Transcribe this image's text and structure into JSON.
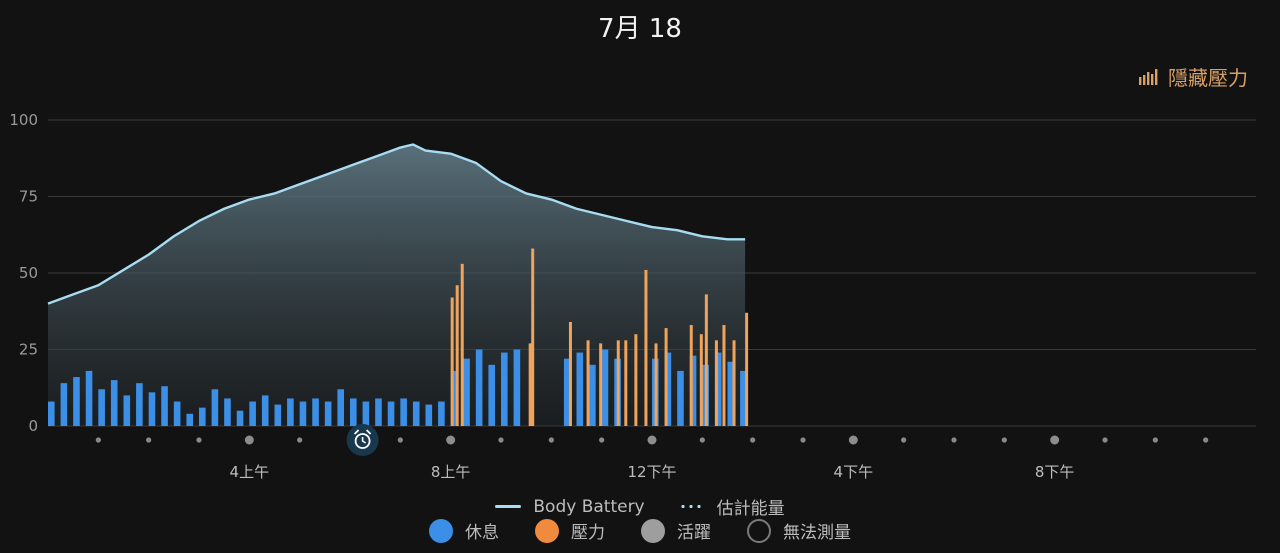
{
  "header": {
    "title": "7月 18",
    "hide_stress_label": "隱藏壓力",
    "hide_stress_color": "#d9a066"
  },
  "legend": {
    "line_items": [
      {
        "label": "Body Battery",
        "color": "#a7dcf2",
        "style": "solid"
      },
      {
        "label": "估計能量",
        "color": "#a7dcf2",
        "style": "dotted"
      }
    ],
    "level_items": [
      {
        "label": "休息",
        "color": "#3b8fe6",
        "style": "filled"
      },
      {
        "label": "壓力",
        "color": "#f08a3c",
        "style": "filled"
      },
      {
        "label": "活躍",
        "color": "#9e9e9e",
        "style": "filled"
      },
      {
        "label": "無法測量",
        "color": "#7a7a7a",
        "style": "outline"
      }
    ]
  },
  "chart_data": {
    "type": "bar",
    "date": "7月 18",
    "x_unit": "hours since 12上午",
    "xlim": [
      0,
      24
    ],
    "ylim": [
      0,
      100
    ],
    "yticks": [
      0,
      25,
      50,
      75,
      100
    ],
    "xtick_labels": [
      {
        "hour": 4,
        "label": "4上午"
      },
      {
        "hour": 8,
        "label": "8上午"
      },
      {
        "hour": 12,
        "label": "12下午"
      },
      {
        "hour": 16,
        "label": "4下午"
      },
      {
        "hour": 20,
        "label": "8下午"
      }
    ],
    "wake_hour": 6.25,
    "grid": true,
    "legend_position": "bottom",
    "body_battery": {
      "name": "Body Battery",
      "color": "#a7dcf2",
      "points": [
        [
          0,
          40
        ],
        [
          0.5,
          43
        ],
        [
          1,
          46
        ],
        [
          1.5,
          51
        ],
        [
          2,
          56
        ],
        [
          2.5,
          62
        ],
        [
          3,
          67
        ],
        [
          3.5,
          71
        ],
        [
          4,
          74
        ],
        [
          4.5,
          76
        ],
        [
          5,
          79
        ],
        [
          5.5,
          82
        ],
        [
          6,
          85
        ],
        [
          6.5,
          88
        ],
        [
          7,
          91
        ],
        [
          7.25,
          92
        ],
        [
          7.5,
          90
        ],
        [
          8,
          89
        ],
        [
          8.5,
          86
        ],
        [
          9,
          80
        ],
        [
          9.5,
          76
        ],
        [
          10,
          74
        ],
        [
          10.5,
          71
        ],
        [
          11,
          69
        ],
        [
          11.5,
          67
        ],
        [
          12,
          65
        ],
        [
          12.5,
          64
        ],
        [
          13,
          62
        ],
        [
          13.5,
          61
        ],
        [
          13.85,
          61
        ]
      ]
    },
    "stress_series": [
      {
        "name": "休息",
        "color": "#3b8fe6",
        "bars": [
          [
            0,
            8
          ],
          [
            0.25,
            14
          ],
          [
            0.5,
            16
          ],
          [
            0.75,
            18
          ],
          [
            1,
            12
          ],
          [
            1.25,
            15
          ],
          [
            1.5,
            10
          ],
          [
            1.75,
            14
          ],
          [
            2,
            11
          ],
          [
            2.25,
            13
          ],
          [
            2.5,
            8
          ],
          [
            2.75,
            4
          ],
          [
            3,
            6
          ],
          [
            3.25,
            12
          ],
          [
            3.5,
            9
          ],
          [
            3.75,
            5
          ],
          [
            4,
            8
          ],
          [
            4.25,
            10
          ],
          [
            4.5,
            7
          ],
          [
            4.75,
            9
          ],
          [
            5,
            8
          ],
          [
            5.25,
            9
          ],
          [
            5.5,
            8
          ],
          [
            5.75,
            12
          ],
          [
            6,
            9
          ],
          [
            6.25,
            8
          ],
          [
            6.5,
            9
          ],
          [
            6.75,
            8
          ],
          [
            7,
            9
          ],
          [
            7.25,
            8
          ],
          [
            7.5,
            7
          ],
          [
            7.75,
            8
          ],
          [
            8,
            18
          ],
          [
            8.25,
            22
          ],
          [
            8.5,
            25
          ],
          [
            8.75,
            20
          ],
          [
            9,
            24
          ],
          [
            9.25,
            25
          ],
          [
            10.25,
            22
          ],
          [
            10.5,
            24
          ],
          [
            10.75,
            20
          ],
          [
            11,
            25
          ],
          [
            11.25,
            22
          ],
          [
            12,
            22
          ],
          [
            12.25,
            24
          ],
          [
            12.5,
            18
          ],
          [
            12.75,
            23
          ],
          [
            13,
            20
          ],
          [
            13.25,
            24
          ],
          [
            13.5,
            21
          ],
          [
            13.75,
            18
          ]
        ]
      },
      {
        "name": "壓力",
        "color": "#f0a35a",
        "bars": [
          [
            8,
            42
          ],
          [
            8.1,
            46
          ],
          [
            8.2,
            53
          ],
          [
            9.55,
            27
          ],
          [
            9.6,
            58
          ],
          [
            10.35,
            34
          ],
          [
            10.7,
            28
          ],
          [
            10.95,
            27
          ],
          [
            11.3,
            28
          ],
          [
            11.45,
            28
          ],
          [
            11.65,
            30
          ],
          [
            11.85,
            51
          ],
          [
            12.05,
            27
          ],
          [
            12.25,
            32
          ],
          [
            12.75,
            33
          ],
          [
            12.95,
            30
          ],
          [
            13.05,
            43
          ],
          [
            13.25,
            28
          ],
          [
            13.4,
            33
          ],
          [
            13.6,
            28
          ],
          [
            13.85,
            37
          ]
        ]
      }
    ]
  }
}
